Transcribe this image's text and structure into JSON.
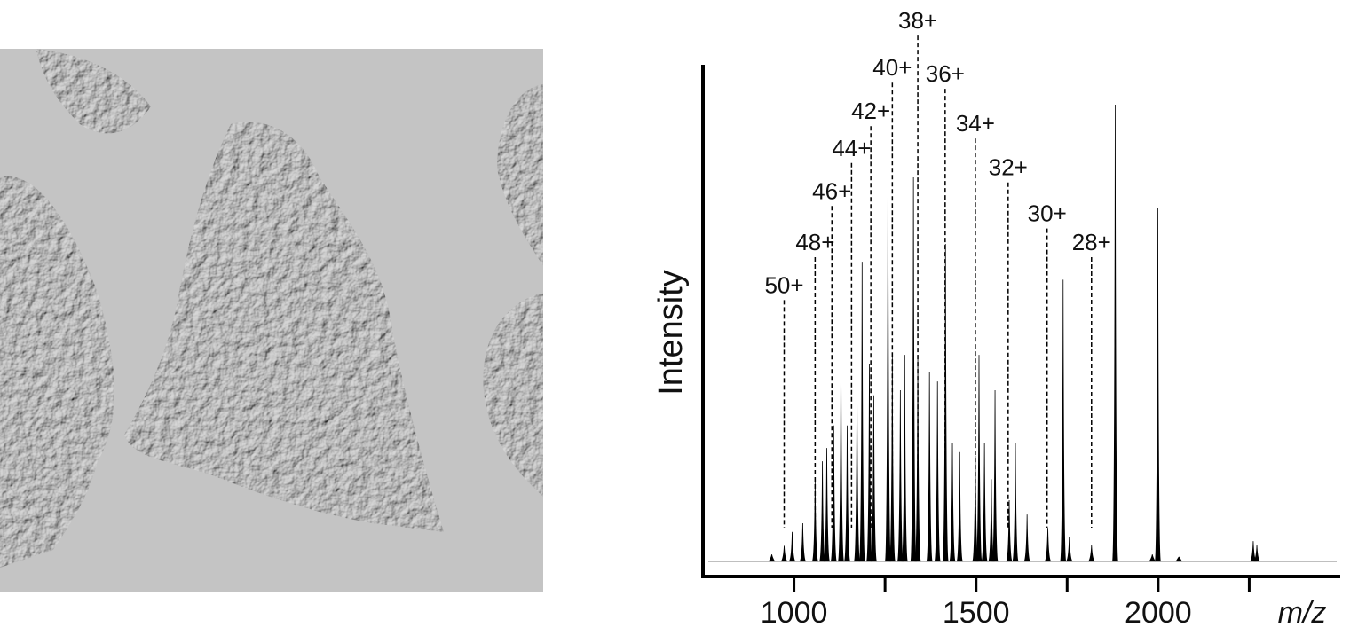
{
  "chart_data": {
    "type": "spectrum",
    "xlabel": "m/z",
    "ylabel": "Intensity",
    "xlim": [
      750,
      2500
    ],
    "ylim": [
      0,
      100
    ],
    "xticks": [
      1000,
      1500,
      2000
    ],
    "minor_xticks": [
      1250,
      1750,
      2250
    ],
    "baseline": 3,
    "color": "#000000",
    "x": [
      939,
      973,
      995,
      1024,
      1058,
      1078,
      1090,
      1109,
      1129,
      1146,
      1173,
      1187,
      1207,
      1219,
      1258,
      1270,
      1292,
      1304,
      1328,
      1340,
      1372,
      1394,
      1416,
      1435,
      1455,
      1498,
      1508,
      1523,
      1542,
      1552,
      1591,
      1608,
      1640,
      1697,
      1739,
      1756,
      1817,
      1882,
      1984,
      1999,
      2057,
      2261,
      2271
    ],
    "values": [
      4.3,
      6,
      8.7,
      10.4,
      19,
      22.5,
      25.1,
      29.5,
      43.3,
      29.5,
      36.4,
      61.5,
      41.6,
      35.4,
      76.8,
      43.3,
      36.4,
      43.3,
      78,
      43.3,
      39.9,
      38.1,
      65,
      26,
      24.3,
      23.6,
      43.3,
      26,
      19,
      36.4,
      14.9,
      26,
      12.1,
      9.5,
      58,
      7.8,
      6.1,
      92.2,
      4.3,
      72,
      3.8,
      6.9,
      6.1
    ],
    "annotations": [
      {
        "label": "50+",
        "x": 973,
        "y": 54
      },
      {
        "label": "48+",
        "x": 1058,
        "y": 62.4
      },
      {
        "label": "46+",
        "x": 1104,
        "y": 72.4
      },
      {
        "label": "44+",
        "x": 1158,
        "y": 80.8
      },
      {
        "label": "42+",
        "x": 1211,
        "y": 88
      },
      {
        "label": "40+",
        "x": 1270,
        "y": 96.5
      },
      {
        "label": "38+",
        "x": 1340,
        "y": 105.7
      },
      {
        "label": "36+",
        "x": 1415,
        "y": 95.3
      },
      {
        "label": "34+",
        "x": 1498,
        "y": 85.6
      },
      {
        "label": "32+",
        "x": 1588,
        "y": 77
      },
      {
        "label": "30+",
        "x": 1695,
        "y": 68
      },
      {
        "label": "28+",
        "x": 1817,
        "y": 62.4
      }
    ]
  }
}
